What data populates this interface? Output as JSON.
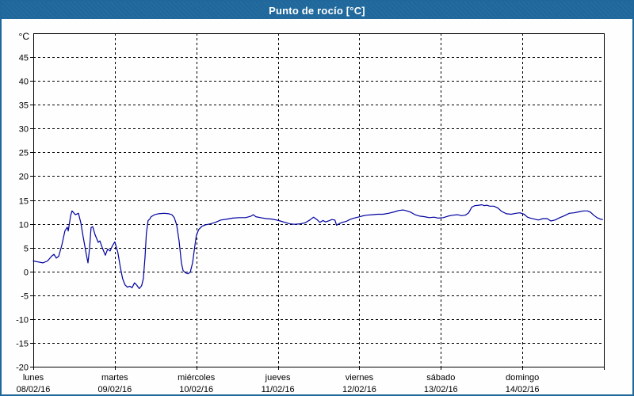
{
  "window": {
    "title": "Punto de rocío [°C]",
    "titlebar_color": "#20689C",
    "border_color": "#20689C",
    "background_color": "#FDFEFD"
  },
  "chart_data": {
    "type": "line",
    "title": "Punto de rocío [°C]",
    "ylabel": "°C",
    "unit_label": "°C",
    "ylim": [
      -20,
      50
    ],
    "y_ticks": [
      45,
      40,
      35,
      30,
      25,
      20,
      15,
      10,
      5,
      0,
      -5,
      -10,
      -15,
      -20
    ],
    "grid": {
      "horizontal": "dashed",
      "vertical": "dashed-at-day-boundaries",
      "color": "#000000"
    },
    "line_color": "#0000A0",
    "axis_color": "#000000",
    "legend_position": "none",
    "x_axis": {
      "total_hours": 168,
      "days": [
        {
          "name": "lunes",
          "date": "08/02/16"
        },
        {
          "name": "martes",
          "date": "09/02/16"
        },
        {
          "name": "miércoles",
          "date": "10/02/16"
        },
        {
          "name": "jueves",
          "date": "11/02/16"
        },
        {
          "name": "viernes",
          "date": "12/02/16"
        },
        {
          "name": "sábado",
          "date": "13/02/16"
        },
        {
          "name": "domingo",
          "date": "14/02/16"
        }
      ]
    },
    "series": [
      {
        "name": "Punto de rocío",
        "unit": "°C",
        "x_unit": "hours_from_monday_00h",
        "points": [
          [
            0,
            2.2
          ],
          [
            1.4,
            2.0
          ],
          [
            2.8,
            1.8
          ],
          [
            4.2,
            2.2
          ],
          [
            5.4,
            3.2
          ],
          [
            6.1,
            3.6
          ],
          [
            6.8,
            2.8
          ],
          [
            7.5,
            3.2
          ],
          [
            8.4,
            5.5
          ],
          [
            9.3,
            8.5
          ],
          [
            10.0,
            9.3
          ],
          [
            10.3,
            8.5
          ],
          [
            11.0,
            11.7
          ],
          [
            11.4,
            12.7
          ],
          [
            12.4,
            11.9
          ],
          [
            13.3,
            12.2
          ],
          [
            14.0,
            10.2
          ],
          [
            14.7,
            7.2
          ],
          [
            15.6,
            3.6
          ],
          [
            16.1,
            1.8
          ],
          [
            16.6,
            5.0
          ],
          [
            17.0,
            9.2
          ],
          [
            17.5,
            9.4
          ],
          [
            18.2,
            7.7
          ],
          [
            19.1,
            6.1
          ],
          [
            19.6,
            6.4
          ],
          [
            20.3,
            5.0
          ],
          [
            21.2,
            3.4
          ],
          [
            21.9,
            4.7
          ],
          [
            22.6,
            4.3
          ],
          [
            23.3,
            5.4
          ],
          [
            24.0,
            6.2
          ],
          [
            24.9,
            4.0
          ],
          [
            25.6,
            1.0
          ],
          [
            26.3,
            -1.5
          ],
          [
            27.0,
            -2.8
          ],
          [
            27.7,
            -3.3
          ],
          [
            28.4,
            -3.1
          ],
          [
            29.1,
            -3.4
          ],
          [
            29.8,
            -2.4
          ],
          [
            30.5,
            -2.9
          ],
          [
            31.2,
            -3.6
          ],
          [
            31.9,
            -3.0
          ],
          [
            32.4,
            -1.5
          ],
          [
            32.9,
            3.0
          ],
          [
            33.3,
            8.0
          ],
          [
            33.8,
            10.7
          ],
          [
            34.3,
            11.0
          ],
          [
            34.7,
            11.5
          ],
          [
            35.7,
            11.9
          ],
          [
            36.8,
            12.1
          ],
          [
            38.5,
            12.2
          ],
          [
            39.9,
            12.1
          ],
          [
            40.8,
            11.9
          ],
          [
            41.5,
            11.3
          ],
          [
            42.2,
            9.8
          ],
          [
            42.9,
            6.5
          ],
          [
            43.6,
            1.8
          ],
          [
            44.1,
            0.2
          ],
          [
            44.8,
            -0.3
          ],
          [
            45.5,
            -0.5
          ],
          [
            46.2,
            -0.2
          ],
          [
            46.9,
            1.8
          ],
          [
            47.5,
            5.0
          ],
          [
            48.0,
            7.5
          ],
          [
            48.7,
            8.8
          ],
          [
            49.7,
            9.5
          ],
          [
            50.8,
            9.8
          ],
          [
            52.2,
            10.0
          ],
          [
            53.6,
            10.3
          ],
          [
            55.2,
            10.8
          ],
          [
            57.1,
            11.0
          ],
          [
            58.7,
            11.2
          ],
          [
            60.6,
            11.3
          ],
          [
            62.5,
            11.3
          ],
          [
            64.1,
            11.6
          ],
          [
            64.8,
            11.9
          ],
          [
            65.5,
            11.5
          ],
          [
            66.9,
            11.3
          ],
          [
            68.5,
            11.1
          ],
          [
            70.2,
            11.0
          ],
          [
            71.6,
            10.8
          ],
          [
            72.7,
            10.6
          ],
          [
            74.1,
            10.3
          ],
          [
            75.5,
            10.0
          ],
          [
            76.9,
            9.9
          ],
          [
            78.6,
            10.0
          ],
          [
            80.0,
            10.2
          ],
          [
            81.4,
            10.8
          ],
          [
            82.5,
            11.4
          ],
          [
            83.5,
            10.9
          ],
          [
            84.4,
            10.3
          ],
          [
            85.3,
            10.7
          ],
          [
            86.0,
            10.4
          ],
          [
            86.9,
            10.6
          ],
          [
            87.9,
            10.9
          ],
          [
            88.8,
            10.8
          ],
          [
            89.3,
            9.7
          ],
          [
            90.0,
            10.0
          ],
          [
            90.9,
            10.3
          ],
          [
            92.1,
            10.5
          ],
          [
            93.2,
            10.9
          ],
          [
            94.4,
            11.2
          ],
          [
            95.6,
            11.4
          ],
          [
            96.7,
            11.6
          ],
          [
            98.1,
            11.8
          ],
          [
            99.8,
            11.9
          ],
          [
            101.4,
            12.0
          ],
          [
            103.0,
            12.0
          ],
          [
            104.6,
            12.2
          ],
          [
            106.3,
            12.5
          ],
          [
            107.7,
            12.8
          ],
          [
            108.9,
            12.9
          ],
          [
            110.0,
            12.7
          ],
          [
            111.2,
            12.4
          ],
          [
            112.4,
            11.9
          ],
          [
            113.8,
            11.6
          ],
          [
            115.2,
            11.5
          ],
          [
            116.6,
            11.3
          ],
          [
            118.0,
            11.4
          ],
          [
            119.2,
            11.2
          ],
          [
            120.7,
            11.3
          ],
          [
            122.1,
            11.6
          ],
          [
            123.5,
            11.8
          ],
          [
            124.9,
            11.9
          ],
          [
            126.1,
            11.7
          ],
          [
            127.2,
            11.8
          ],
          [
            128.2,
            12.3
          ],
          [
            129.1,
            13.5
          ],
          [
            130.0,
            13.8
          ],
          [
            131.2,
            13.9
          ],
          [
            132.1,
            14.0
          ],
          [
            132.8,
            13.8
          ],
          [
            133.5,
            13.9
          ],
          [
            134.4,
            13.7
          ],
          [
            135.6,
            13.7
          ],
          [
            136.8,
            13.3
          ],
          [
            137.9,
            12.6
          ],
          [
            139.3,
            12.1
          ],
          [
            140.7,
            12.0
          ],
          [
            142.1,
            12.2
          ],
          [
            143.3,
            12.3
          ],
          [
            144.5,
            12.0
          ],
          [
            145.5,
            11.4
          ],
          [
            146.4,
            11.2
          ],
          [
            147.5,
            11.0
          ],
          [
            148.7,
            10.8
          ],
          [
            150.1,
            11.1
          ],
          [
            151.3,
            11.1
          ],
          [
            152.4,
            10.6
          ],
          [
            153.6,
            10.8
          ],
          [
            155.0,
            11.3
          ],
          [
            156.4,
            11.7
          ],
          [
            157.8,
            12.2
          ],
          [
            159.2,
            12.3
          ],
          [
            160.6,
            12.5
          ],
          [
            162.0,
            12.7
          ],
          [
            163.2,
            12.7
          ],
          [
            164.1,
            12.4
          ],
          [
            165.0,
            11.8
          ],
          [
            166.0,
            11.3
          ],
          [
            166.9,
            11.0
          ],
          [
            167.6,
            10.9
          ]
        ]
      }
    ]
  }
}
